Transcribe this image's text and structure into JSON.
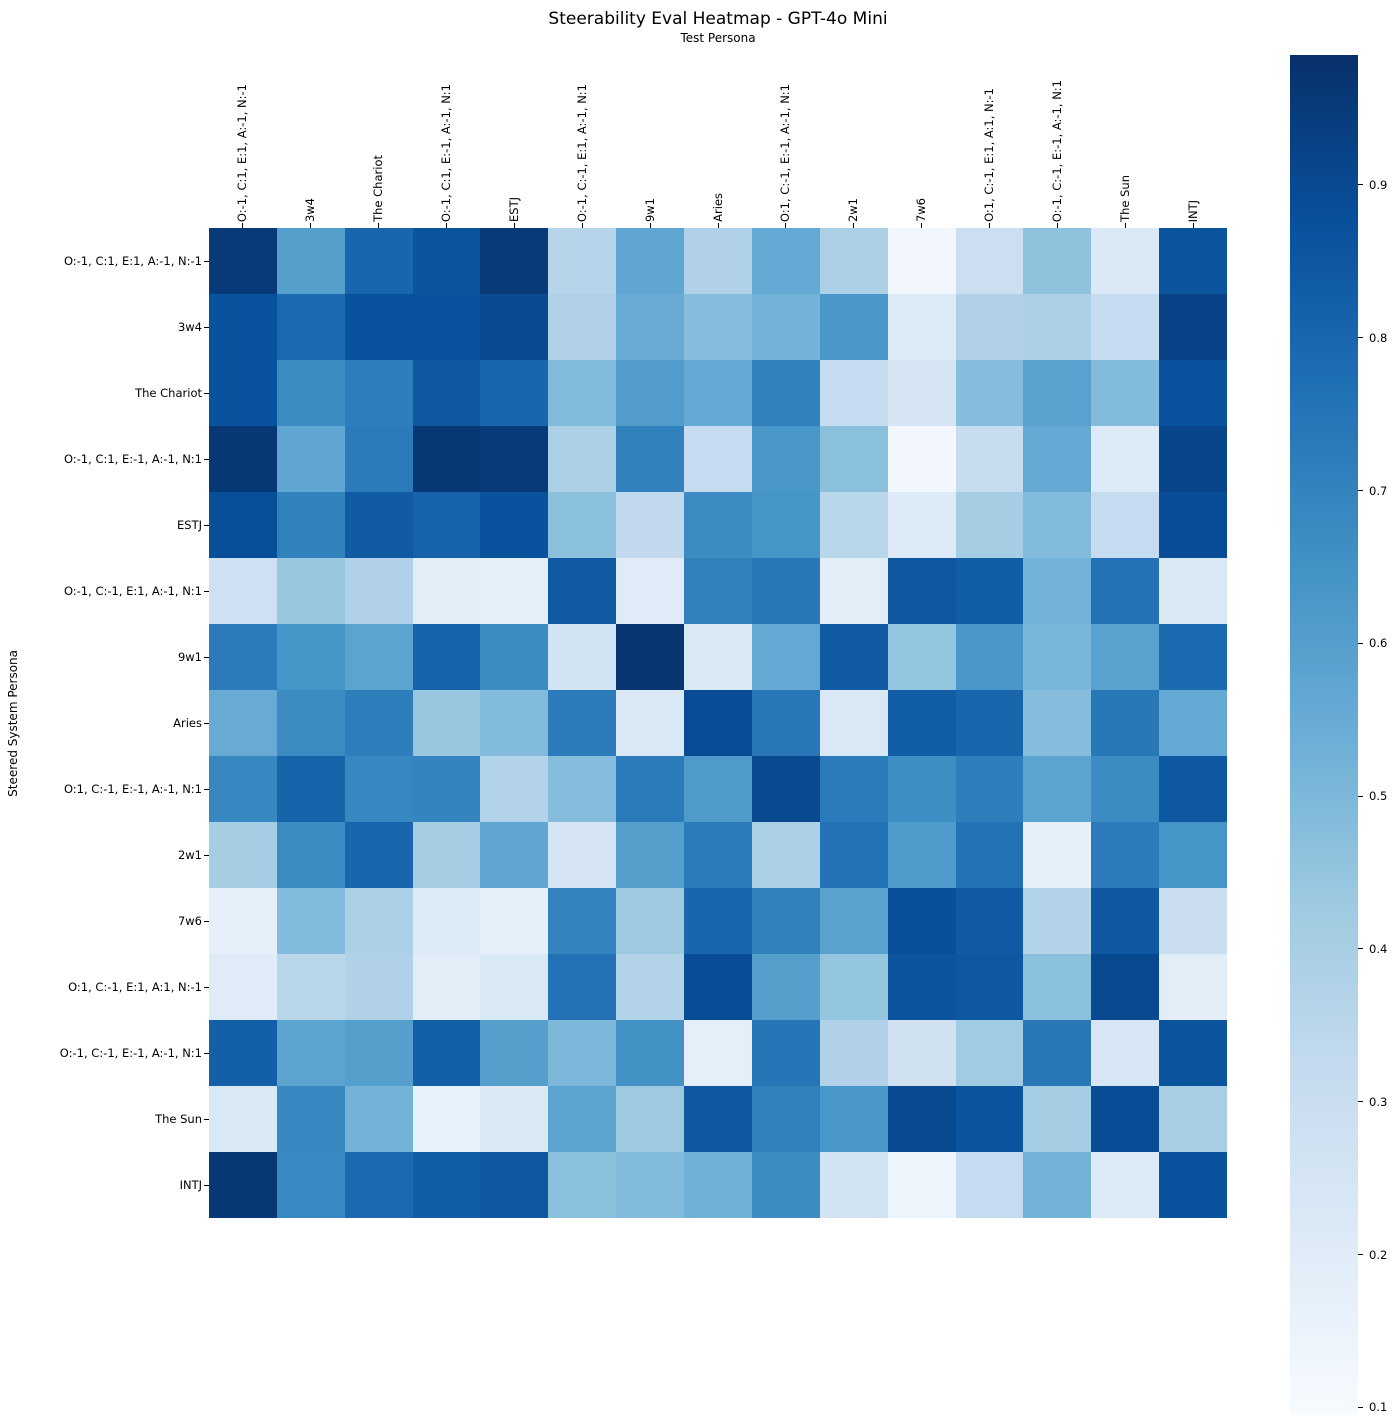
{
  "figure": {
    "title": "Steerability Eval Heatmap - GPT-4o Mini",
    "x_axis_title": "Test Persona",
    "y_axis_title": "Steered System Persona"
  },
  "personas": [
    "O:-1, C:1, E:1, A:-1, N:-1",
    "3w4",
    "The Chariot",
    "O:-1, C:1, E:-1, A:-1, N:1",
    "ESTJ",
    "O:-1, C:-1, E:1, A:-1, N:1",
    "9w1",
    "Aries",
    "O:1, C:-1, E:-1, A:-1, N:1",
    "2w1",
    "7w6",
    "O:1, C:-1, E:1, A:1, N:-1",
    "O:-1, C:-1, E:-1, A:-1, N:1",
    "The Sun",
    "INTJ"
  ],
  "colorbar": {
    "tick_labels": [
      "0.9",
      "0.8",
      "0.7",
      "0.6",
      "0.5",
      "0.4",
      "0.3",
      "0.2",
      "0.1"
    ]
  },
  "chart_data": {
    "type": "heatmap",
    "title": "Steerability Eval Heatmap - GPT-4o Mini",
    "xlabel": "Test Persona",
    "ylabel": "Steered System Persona",
    "x_categories": [
      "O:-1, C:1, E:1, A:-1, N:-1",
      "3w4",
      "The Chariot",
      "O:-1, C:1, E:-1, A:-1, N:1",
      "ESTJ",
      "O:-1, C:-1, E:1, A:-1, N:1",
      "9w1",
      "Aries",
      "O:1, C:-1, E:-1, A:-1, N:1",
      "2w1",
      "7w6",
      "O:1, C:-1, E:1, A:1, N:-1",
      "O:-1, C:-1, E:-1, A:-1, N:1",
      "The Sun",
      "INTJ"
    ],
    "y_categories": [
      "O:-1, C:1, E:1, A:-1, N:-1",
      "3w4",
      "The Chariot",
      "O:-1, C:1, E:-1, A:-1, N:1",
      "ESTJ",
      "O:-1, C:-1, E:1, A:-1, N:1",
      "9w1",
      "Aries",
      "O:1, C:-1, E:-1, A:-1, N:1",
      "2w1",
      "7w6",
      "O:1, C:-1, E:1, A:1, N:-1",
      "O:-1, C:-1, E:-1, A:-1, N:1",
      "The Sun",
      "INTJ"
    ],
    "values": [
      [
        0.95,
        0.6,
        0.8,
        0.86,
        0.95,
        0.36,
        0.57,
        0.38,
        0.56,
        0.39,
        0.12,
        0.29,
        0.46,
        0.22,
        0.86
      ],
      [
        0.87,
        0.79,
        0.87,
        0.87,
        0.9,
        0.38,
        0.55,
        0.48,
        0.52,
        0.63,
        0.21,
        0.38,
        0.39,
        0.32,
        0.92
      ],
      [
        0.87,
        0.67,
        0.72,
        0.85,
        0.8,
        0.49,
        0.61,
        0.56,
        0.71,
        0.32,
        0.25,
        0.48,
        0.59,
        0.49,
        0.87
      ],
      [
        0.96,
        0.57,
        0.73,
        0.96,
        0.95,
        0.39,
        0.71,
        0.32,
        0.63,
        0.47,
        0.12,
        0.31,
        0.56,
        0.21,
        0.91
      ],
      [
        0.88,
        0.71,
        0.84,
        0.81,
        0.87,
        0.47,
        0.33,
        0.67,
        0.64,
        0.35,
        0.21,
        0.41,
        0.49,
        0.32,
        0.89
      ],
      [
        0.28,
        0.44,
        0.38,
        0.19,
        0.18,
        0.84,
        0.2,
        0.71,
        0.74,
        0.19,
        0.85,
        0.83,
        0.52,
        0.76,
        0.22
      ],
      [
        0.73,
        0.64,
        0.58,
        0.81,
        0.67,
        0.26,
        0.97,
        0.23,
        0.56,
        0.84,
        0.45,
        0.63,
        0.51,
        0.59,
        0.79
      ],
      [
        0.55,
        0.67,
        0.72,
        0.44,
        0.49,
        0.73,
        0.22,
        0.89,
        0.74,
        0.23,
        0.83,
        0.8,
        0.48,
        0.74,
        0.56
      ],
      [
        0.69,
        0.81,
        0.69,
        0.7,
        0.37,
        0.48,
        0.73,
        0.62,
        0.9,
        0.73,
        0.66,
        0.72,
        0.58,
        0.67,
        0.85
      ],
      [
        0.41,
        0.67,
        0.8,
        0.41,
        0.57,
        0.25,
        0.6,
        0.73,
        0.39,
        0.76,
        0.62,
        0.76,
        0.17,
        0.73,
        0.64
      ],
      [
        0.17,
        0.49,
        0.39,
        0.21,
        0.17,
        0.7,
        0.43,
        0.8,
        0.71,
        0.59,
        0.88,
        0.84,
        0.37,
        0.85,
        0.3
      ],
      [
        0.2,
        0.35,
        0.38,
        0.19,
        0.23,
        0.76,
        0.37,
        0.89,
        0.6,
        0.45,
        0.86,
        0.85,
        0.47,
        0.9,
        0.19
      ],
      [
        0.82,
        0.58,
        0.6,
        0.82,
        0.6,
        0.5,
        0.65,
        0.18,
        0.75,
        0.38,
        0.27,
        0.42,
        0.74,
        0.24,
        0.86
      ],
      [
        0.23,
        0.69,
        0.52,
        0.16,
        0.22,
        0.58,
        0.43,
        0.85,
        0.71,
        0.63,
        0.9,
        0.86,
        0.41,
        0.89,
        0.4
      ],
      [
        0.96,
        0.68,
        0.79,
        0.83,
        0.85,
        0.47,
        0.49,
        0.53,
        0.67,
        0.26,
        0.14,
        0.32,
        0.52,
        0.21,
        0.87
      ]
    ],
    "vmin": 0.095,
    "vmax": 0.985,
    "colormap": "Blues",
    "colormap_anchors": [
      "#f7fbff",
      "#deebf7",
      "#c6dbef",
      "#9ecae1",
      "#6baed6",
      "#4292c6",
      "#2171b5",
      "#08519c",
      "#08306b"
    ],
    "colorbar_ticks": [
      0.9,
      0.8,
      0.7,
      0.6,
      0.5,
      0.4,
      0.3,
      0.2,
      0.1
    ],
    "legend_position": "right-colorbar",
    "grid": false
  }
}
